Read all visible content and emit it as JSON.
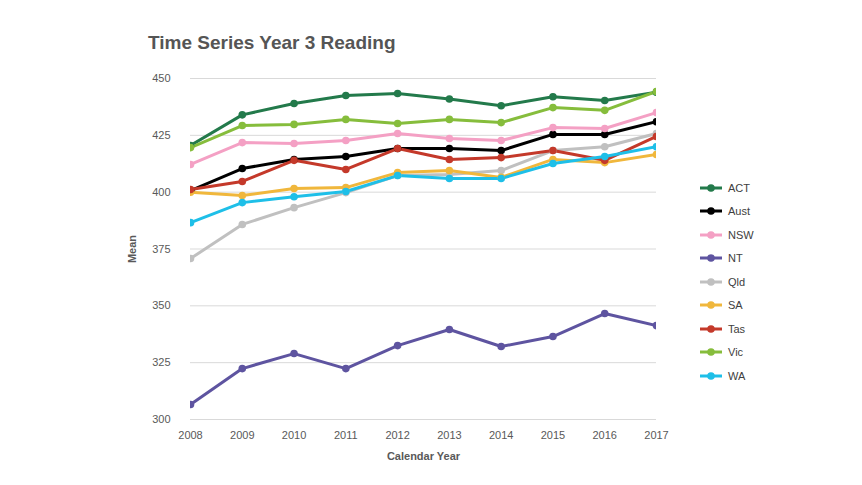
{
  "chart_data": {
    "type": "line",
    "title": "Time Series Year 3 Reading",
    "x_label": "Calendar Year",
    "y_label": "Mean",
    "x": [
      2008,
      2009,
      2010,
      2011,
      2012,
      2013,
      2014,
      2015,
      2016,
      2017
    ],
    "xlim": [
      2008,
      2017
    ],
    "xticks": [
      2008,
      2009,
      2010,
      2011,
      2012,
      2013,
      2014,
      2015,
      2016,
      2017
    ],
    "ylim": [
      300,
      450
    ],
    "yticks": [
      300,
      325,
      350,
      375,
      400,
      425,
      450
    ],
    "grid": true,
    "legend": "right",
    "marker": "circle",
    "line_style": "solid",
    "series": [
      {
        "name": "ACT",
        "color": "#237a4b",
        "values": [
          420.5,
          434,
          439,
          442.5,
          443.4,
          441,
          438,
          442,
          440.3,
          444
        ]
      },
      {
        "name": "Aust",
        "color": "#000000",
        "values": [
          400.7,
          410.4,
          414.4,
          415.7,
          419.2,
          419.2,
          418.3,
          425.4,
          425.4,
          431
        ]
      },
      {
        "name": "NSW",
        "color": "#f4a0c4",
        "values": [
          412.2,
          421.8,
          421.4,
          422.7,
          425.8,
          423.6,
          422.7,
          428.4,
          428,
          435
        ]
      },
      {
        "name": "NT",
        "color": "#5e54a0",
        "values": [
          306.6,
          322.4,
          329,
          322.4,
          332.5,
          339.6,
          332.1,
          336.5,
          346.6,
          341.3
        ]
      },
      {
        "name": "Qld",
        "color": "#c0c0c0",
        "values": [
          370.8,
          385.8,
          393.2,
          399.8,
          407.3,
          407.8,
          409.5,
          418.3,
          420,
          425.8
        ]
      },
      {
        "name": "SA",
        "color": "#f0b73c",
        "values": [
          400,
          398.5,
          401.6,
          402,
          408.6,
          409.5,
          406.5,
          414.4,
          413,
          416.6
        ]
      },
      {
        "name": "Tas",
        "color": "#c4392a",
        "values": [
          401.2,
          404.7,
          414,
          410,
          419.2,
          414.4,
          415.2,
          418.3,
          414,
          424.5
        ]
      },
      {
        "name": "Vic",
        "color": "#86bd3c",
        "values": [
          419.6,
          429.3,
          429.8,
          432,
          430.2,
          432,
          430.6,
          437.2,
          436,
          444.3
        ]
      },
      {
        "name": "WA",
        "color": "#1ebfe8",
        "values": [
          386.6,
          395.4,
          398,
          400.3,
          407.3,
          406,
          406,
          412.6,
          415.7,
          420
        ]
      }
    ]
  }
}
